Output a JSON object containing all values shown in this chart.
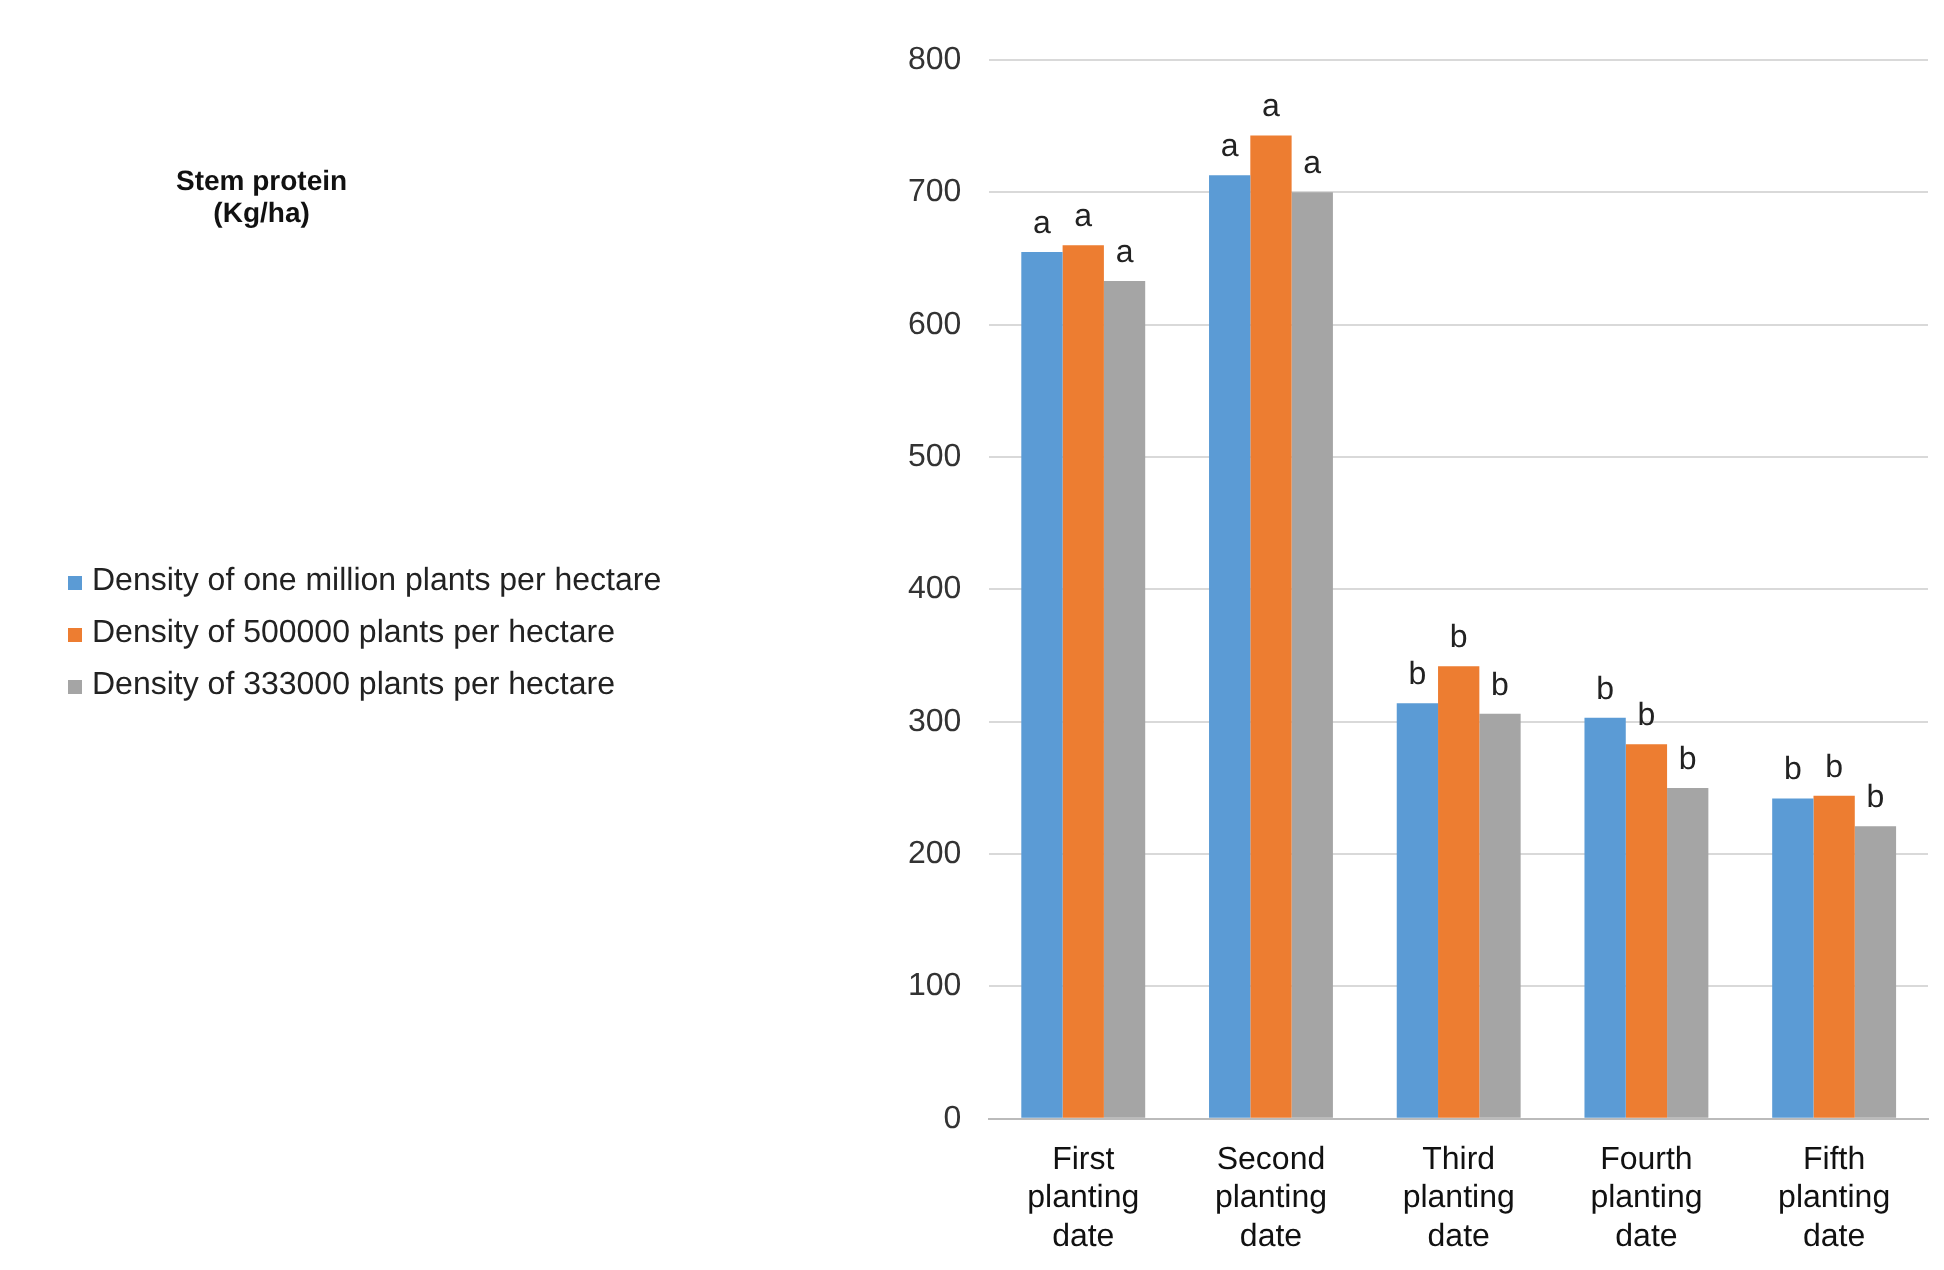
{
  "chart_data": {
    "type": "bar",
    "title": "Stem protein\n(Kg/ha)",
    "categories": [
      "First planting date",
      "Second planting date",
      "Third planting date",
      "Fourth planting date",
      "Fifth planting date"
    ],
    "series": [
      {
        "name": "Density of one million plants per hectare",
        "color": "#5b9bd5",
        "values": [
          655,
          713,
          314,
          303,
          242
        ],
        "value_labels": [
          "a",
          "a",
          "b",
          "b",
          "b"
        ]
      },
      {
        "name": "Density of 500000 plants per hectare",
        "color": "#ed7d31",
        "values": [
          660,
          743,
          342,
          283,
          244
        ],
        "value_labels": [
          "a",
          "a",
          "b",
          "b",
          "b"
        ]
      },
      {
        "name": "Density of 333000 plants per hectare",
        "color": "#a5a5a5",
        "values": [
          633,
          700,
          306,
          250,
          221
        ],
        "value_labels": [
          "a",
          "a",
          "b",
          "b",
          "b"
        ]
      }
    ],
    "ylim": [
      0,
      800
    ],
    "yticks": [
      0,
      100,
      200,
      300,
      400,
      500,
      600,
      700,
      800
    ],
    "grid": "y",
    "legend": "left"
  }
}
